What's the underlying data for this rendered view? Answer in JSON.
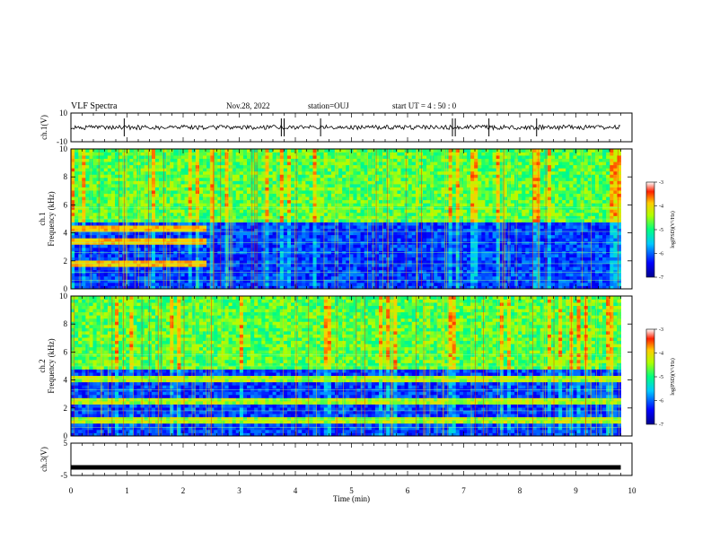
{
  "header": {
    "title": "VLF Spectra",
    "date": "Nov.28, 2022",
    "station": "station=OUJ",
    "start": "start  UT =   4 : 50 : 0"
  },
  "chart_data": [
    {
      "type": "line",
      "panel": "ch1-waveform",
      "ylabel": "ch.1(V)",
      "ylim": [
        -10,
        10
      ],
      "ytick_labels": [
        "10",
        "-10"
      ],
      "xlim": [
        0,
        10
      ],
      "series": [
        {
          "x": [
            0,
            9.8
          ],
          "y": [
            0,
            0
          ]
        }
      ],
      "note_values": {
        "baseline": 0,
        "spike_times_min": [
          0.95,
          3.75,
          3.8,
          4.45,
          6.8,
          6.85,
          7.45,
          8.3
        ]
      }
    },
    {
      "type": "heatmap",
      "panel": "ch1-spectrogram",
      "ylabel": "ch.1\nFrequency  (kHz)",
      "ylim": [
        0,
        10
      ],
      "ytick_labels": [
        "0",
        "2",
        "4",
        "6",
        "8",
        "10"
      ],
      "xlim": [
        0,
        10
      ],
      "data_end_min": 9.8,
      "colorbar": {
        "label": "log(PSD)(V²/Hz)",
        "range": [
          -7,
          -3
        ],
        "tick_labels": [
          "-3",
          "-4",
          "-5",
          "-6",
          "-7"
        ]
      },
      "band_break_min": 2.4
    },
    {
      "type": "heatmap",
      "panel": "ch2-spectrogram",
      "ylabel": "ch.2\nFrequency  (kHz)",
      "ylim": [
        0,
        10
      ],
      "ytick_labels": [
        "0",
        "2",
        "4",
        "6",
        "8",
        "10"
      ],
      "xlim": [
        0,
        10
      ],
      "data_end_min": 9.8,
      "colorbar": {
        "label": "log(PSD)(V²/Hz)",
        "range": [
          -7,
          -3
        ],
        "tick_labels": [
          "-3",
          "-4",
          "-5",
          "-6",
          "-7"
        ]
      }
    },
    {
      "type": "line",
      "panel": "ch3-waveform",
      "ylabel": "ch.3(V)",
      "ylim": [
        -5,
        5
      ],
      "ytick_labels": [
        "5",
        "-5"
      ],
      "xlim": [
        0,
        10
      ],
      "xlabel": "Time  (min)",
      "xtick_labels": [
        "0",
        "1",
        "2",
        "3",
        "4",
        "5",
        "6",
        "7",
        "8",
        "9",
        "10"
      ],
      "series": [
        {
          "x": [
            0,
            9.8
          ],
          "y": [
            -2.5,
            -2.5
          ]
        }
      ]
    }
  ]
}
